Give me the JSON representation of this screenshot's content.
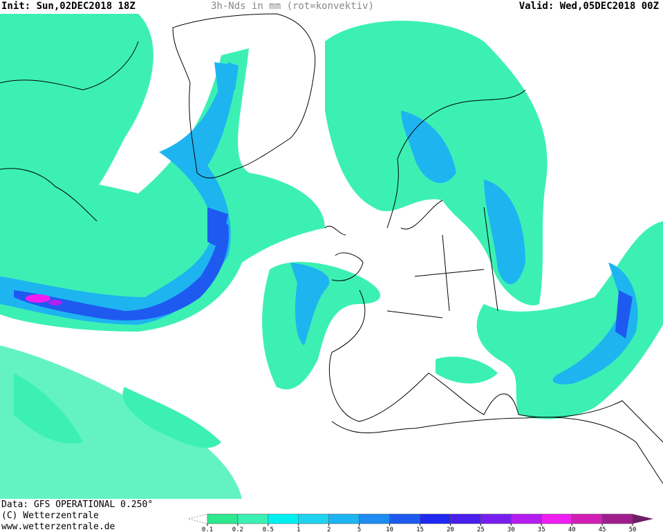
{
  "header": {
    "init": "Init: Sun,02DEC2018 18Z",
    "title": "3h-Nds in mm (rot=konvektiv)",
    "valid": "Valid: Wed,05DEC2018 00Z"
  },
  "footer": {
    "data": "Data: GFS OPERATIONAL 0.250°",
    "copyright": "(C) Wetterzentrale",
    "url": "www.wetterzentrale.de"
  },
  "legend": {
    "levels": [
      0.1,
      0.2,
      0.5,
      1,
      2,
      5,
      10,
      15,
      20,
      25,
      30,
      35,
      40,
      45,
      50
    ],
    "colors": [
      "#2ee88e",
      "#3cf0b4",
      "#00f0f0",
      "#1ed2f0",
      "#1eb4f0",
      "#1e8cf0",
      "#1e5af0",
      "#1e28f0",
      "#4b1ef0",
      "#781ef0",
      "#b41ef0",
      "#f01ef0",
      "#d21eb4",
      "#a01e8c"
    ],
    "over_color": "#6e1e64"
  }
}
